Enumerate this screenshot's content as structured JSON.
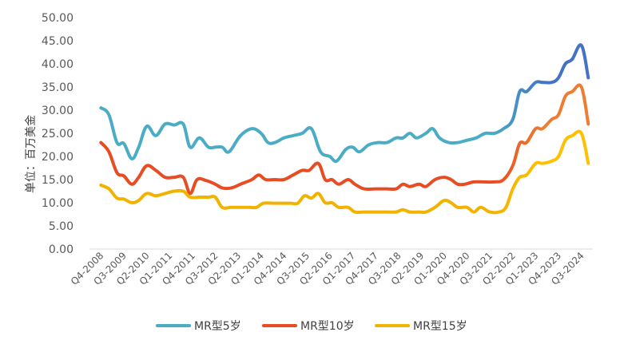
{
  "chart_data": {
    "type": "line",
    "title": "",
    "ylabel": "单位：百万美金",
    "xlabel": "",
    "ylim": [
      0,
      50
    ],
    "yticks": [
      "0.00",
      "5.00",
      "10.00",
      "15.00",
      "20.00",
      "25.00",
      "30.00",
      "35.00",
      "40.00",
      "45.00",
      "50.00"
    ],
    "grid": false,
    "legend": "bottom",
    "x_labels": [
      "Q4-2008",
      "Q3-2009",
      "Q2-2010",
      "Q1-2011",
      "Q4-2011",
      "Q3-2012",
      "Q2-2013",
      "Q1-2014",
      "Q4-2014",
      "Q3-2015",
      "Q2-2016",
      "Q1-2017",
      "Q4-2017",
      "Q3-2018",
      "Q2-2019",
      "Q1-2020",
      "Q4-2020",
      "Q3-2021",
      "Q2-2022",
      "Q1-2023",
      "Q4-2023",
      "Q3-2024"
    ],
    "series": [
      {
        "name": "MR型5岁",
        "color": "#4BACC6",
        "color_end": "#4472C4",
        "points": [
          [
            0,
            30.5
          ],
          [
            0.35,
            29
          ],
          [
            0.7,
            23
          ],
          [
            1,
            22.8
          ],
          [
            1.35,
            19.5
          ],
          [
            1.65,
            22
          ],
          [
            2,
            26.5
          ],
          [
            2.4,
            24.5
          ],
          [
            2.8,
            27
          ],
          [
            3.2,
            26.8
          ],
          [
            3.6,
            27
          ],
          [
            3.9,
            22
          ],
          [
            4.3,
            24
          ],
          [
            4.7,
            22
          ],
          [
            5,
            22
          ],
          [
            5.3,
            22
          ],
          [
            5.6,
            21
          ],
          [
            6.1,
            24.5
          ],
          [
            6.6,
            26
          ],
          [
            7,
            25
          ],
          [
            7.3,
            23
          ],
          [
            7.6,
            23
          ],
          [
            8,
            24
          ],
          [
            8.4,
            24.5
          ],
          [
            8.8,
            25
          ],
          [
            9.2,
            26
          ],
          [
            9.6,
            21
          ],
          [
            10,
            20
          ],
          [
            10.3,
            19
          ],
          [
            10.7,
            21.5
          ],
          [
            11,
            22
          ],
          [
            11.3,
            21
          ],
          [
            11.7,
            22.5
          ],
          [
            12.1,
            23
          ],
          [
            12.5,
            23
          ],
          [
            12.9,
            24
          ],
          [
            13.2,
            24
          ],
          [
            13.5,
            25
          ],
          [
            13.8,
            24
          ],
          [
            14.2,
            25
          ],
          [
            14.5,
            26
          ],
          [
            14.8,
            24
          ],
          [
            15.2,
            23
          ],
          [
            15.6,
            23
          ],
          [
            16,
            23.5
          ],
          [
            16.4,
            24
          ],
          [
            16.8,
            25
          ],
          [
            17.2,
            25
          ],
          [
            17.6,
            26
          ],
          [
            18,
            28
          ],
          [
            18.3,
            34
          ],
          [
            18.6,
            34
          ],
          [
            19,
            36
          ],
          [
            19.3,
            36
          ],
          [
            19.7,
            36
          ],
          [
            20,
            37
          ],
          [
            20.3,
            40
          ],
          [
            20.6,
            41
          ],
          [
            21,
            44
          ],
          [
            21.3,
            37
          ]
        ]
      },
      {
        "name": "MR型10岁",
        "color": "#E84C22",
        "color_end": "#ED7D31",
        "points": [
          [
            0,
            23
          ],
          [
            0.35,
            21
          ],
          [
            0.7,
            16.5
          ],
          [
            1,
            15.8
          ],
          [
            1.35,
            14
          ],
          [
            1.65,
            15.5
          ],
          [
            2,
            18
          ],
          [
            2.4,
            17
          ],
          [
            2.8,
            15.5
          ],
          [
            3.2,
            15.5
          ],
          [
            3.6,
            15.5
          ],
          [
            3.9,
            12
          ],
          [
            4.2,
            15
          ],
          [
            4.6,
            14.8
          ],
          [
            5,
            14
          ],
          [
            5.3,
            13.2
          ],
          [
            5.7,
            13.2
          ],
          [
            6.1,
            14
          ],
          [
            6.6,
            15
          ],
          [
            6.9,
            16
          ],
          [
            7.2,
            15
          ],
          [
            7.6,
            15
          ],
          [
            8,
            15
          ],
          [
            8.4,
            16
          ],
          [
            8.8,
            17
          ],
          [
            9.1,
            17
          ],
          [
            9.5,
            18.5
          ],
          [
            9.8,
            15
          ],
          [
            10.1,
            15
          ],
          [
            10.4,
            14
          ],
          [
            10.8,
            15
          ],
          [
            11.1,
            14
          ],
          [
            11.5,
            13
          ],
          [
            12,
            13
          ],
          [
            12.5,
            13
          ],
          [
            12.9,
            13
          ],
          [
            13.2,
            14
          ],
          [
            13.5,
            13.5
          ],
          [
            13.9,
            14
          ],
          [
            14.2,
            13.5
          ],
          [
            14.6,
            15
          ],
          [
            15,
            15.5
          ],
          [
            15.3,
            15
          ],
          [
            15.6,
            14
          ],
          [
            15.9,
            14
          ],
          [
            16.3,
            14.5
          ],
          [
            16.7,
            14.5
          ],
          [
            17.2,
            14.5
          ],
          [
            17.6,
            15
          ],
          [
            18,
            18
          ],
          [
            18.3,
            22.8
          ],
          [
            18.6,
            23
          ],
          [
            19,
            26
          ],
          [
            19.3,
            26
          ],
          [
            19.7,
            28
          ],
          [
            20,
            29
          ],
          [
            20.3,
            33
          ],
          [
            20.6,
            34
          ],
          [
            21,
            35
          ],
          [
            21.3,
            27
          ]
        ]
      },
      {
        "name": "MR型15岁",
        "color": "#F2B200",
        "color_end": "#FFC000",
        "points": [
          [
            0,
            13.8
          ],
          [
            0.35,
            13
          ],
          [
            0.7,
            11
          ],
          [
            1,
            10.8
          ],
          [
            1.35,
            10
          ],
          [
            1.65,
            10.5
          ],
          [
            2,
            12
          ],
          [
            2.4,
            11.5
          ],
          [
            2.8,
            12
          ],
          [
            3.2,
            12.5
          ],
          [
            3.6,
            12.5
          ],
          [
            3.9,
            11.2
          ],
          [
            4.3,
            11.2
          ],
          [
            4.7,
            11.2
          ],
          [
            5,
            11.2
          ],
          [
            5.3,
            9
          ],
          [
            5.7,
            9
          ],
          [
            6.1,
            9
          ],
          [
            6.5,
            9
          ],
          [
            6.8,
            9
          ],
          [
            7.1,
            9.9
          ],
          [
            7.5,
            9.9
          ],
          [
            7.9,
            9.9
          ],
          [
            8.3,
            9.9
          ],
          [
            8.6,
            9.9
          ],
          [
            8.9,
            11.5
          ],
          [
            9.2,
            11
          ],
          [
            9.5,
            12
          ],
          [
            9.8,
            10
          ],
          [
            10.1,
            10
          ],
          [
            10.4,
            9
          ],
          [
            10.8,
            9
          ],
          [
            11.1,
            8
          ],
          [
            11.5,
            8
          ],
          [
            12,
            8
          ],
          [
            12.5,
            8
          ],
          [
            12.9,
            8
          ],
          [
            13.2,
            8.5
          ],
          [
            13.5,
            8
          ],
          [
            13.9,
            8
          ],
          [
            14.2,
            8
          ],
          [
            14.6,
            9
          ],
          [
            15,
            10.5
          ],
          [
            15.3,
            10
          ],
          [
            15.6,
            9
          ],
          [
            16,
            9
          ],
          [
            16.3,
            8
          ],
          [
            16.6,
            9
          ],
          [
            17,
            8
          ],
          [
            17.4,
            8
          ],
          [
            17.7,
            9
          ],
          [
            18,
            13
          ],
          [
            18.3,
            15.5
          ],
          [
            18.6,
            16
          ],
          [
            19,
            18.5
          ],
          [
            19.3,
            18.5
          ],
          [
            19.7,
            19
          ],
          [
            20,
            20
          ],
          [
            20.3,
            23.5
          ],
          [
            20.6,
            24.5
          ],
          [
            21,
            25
          ],
          [
            21.3,
            18.5
          ]
        ]
      }
    ]
  }
}
